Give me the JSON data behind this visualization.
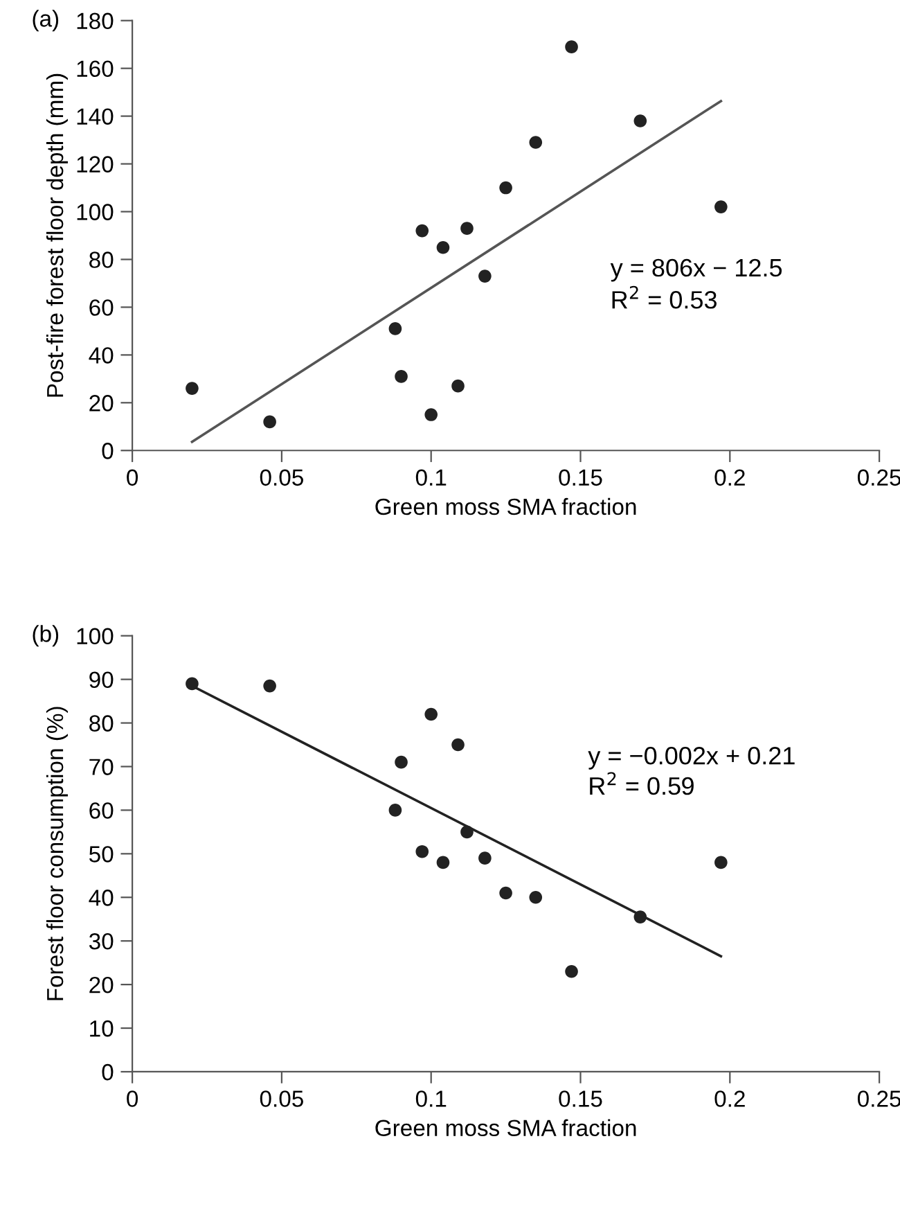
{
  "chart_data": [
    {
      "type": "scatter",
      "title": "(a)",
      "xlabel": "Green moss SMA fraction",
      "ylabel": "Post-fire forest floor depth (mm)",
      "xlim": [
        0,
        0.25
      ],
      "xticks": [
        0,
        0.05,
        0.1,
        0.15,
        0.2,
        0.25
      ],
      "ylim": [
        0,
        180
      ],
      "yticks": [
        0,
        20,
        40,
        60,
        80,
        100,
        120,
        140,
        160,
        180
      ],
      "grid": false,
      "legend": false,
      "annotations": [
        "y = 806x − 12.5",
        "R$^{2}$ = 0.53"
      ],
      "series": [
        {
          "marker": "circle",
          "color": "#222222",
          "x": [
            0.02,
            0.046,
            0.088,
            0.09,
            0.097,
            0.1,
            0.104,
            0.109,
            0.112,
            0.118,
            0.125,
            0.135,
            0.147,
            0.17,
            0.197
          ],
          "values": [
            26,
            12,
            51,
            31,
            92,
            15,
            85,
            27,
            93,
            73,
            110,
            129,
            169,
            138,
            102
          ]
        },
        {
          "type": "line",
          "color": "#555555",
          "x": [
            0.02,
            0.197
          ],
          "values": [
            3.6,
            146.3
          ]
        }
      ]
    },
    {
      "type": "scatter",
      "title": "(b)",
      "xlabel": "Green moss SMA fraction",
      "ylabel": "Forest floor consumption (%)",
      "xlim": [
        0,
        0.25
      ],
      "xticks": [
        0,
        0.05,
        0.1,
        0.15,
        0.2,
        0.25
      ],
      "ylim": [
        0,
        100
      ],
      "yticks": [
        0,
        10,
        20,
        30,
        40,
        50,
        60,
        70,
        80,
        90,
        100
      ],
      "grid": false,
      "legend": false,
      "annotations": [
        "y = −0.002x + 0.21",
        "R$^{2}$ = 0.59"
      ],
      "series": [
        {
          "marker": "circle",
          "color": "#222222",
          "x": [
            0.02,
            0.046,
            0.088,
            0.09,
            0.097,
            0.1,
            0.104,
            0.109,
            0.112,
            0.118,
            0.125,
            0.135,
            0.147,
            0.17,
            0.197
          ],
          "values": [
            89,
            88.5,
            60,
            71,
            50.5,
            82,
            48,
            75,
            55,
            49,
            41,
            40,
            23,
            35.5,
            48
          ]
        },
        {
          "type": "line",
          "color": "#222222",
          "x": [
            0.02,
            0.197
          ],
          "values": [
            88.5,
            26.5
          ]
        }
      ]
    }
  ]
}
